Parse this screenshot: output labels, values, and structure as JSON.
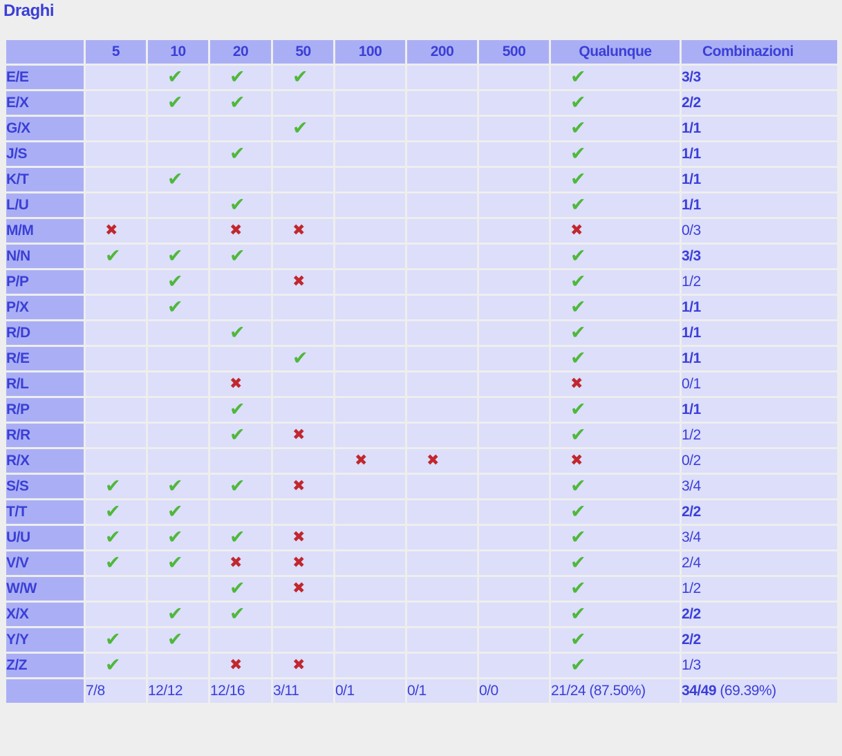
{
  "title": "Draghi",
  "columns": [
    "5",
    "10",
    "20",
    "50",
    "100",
    "200",
    "500",
    "Qualunque",
    "Combinazioni"
  ],
  "icons": {
    "ok": "✔",
    "fail": "✖"
  },
  "rows": [
    {
      "label": "E/E",
      "cells": [
        "",
        "ok",
        "ok",
        "ok",
        "",
        "",
        ""
      ],
      "any": "ok",
      "combo": "3/3",
      "full": true
    },
    {
      "label": "E/X",
      "cells": [
        "",
        "ok",
        "ok",
        "",
        "",
        "",
        ""
      ],
      "any": "ok",
      "combo": "2/2",
      "full": true
    },
    {
      "label": "G/X",
      "cells": [
        "",
        "",
        "",
        "ok",
        "",
        "",
        ""
      ],
      "any": "ok",
      "combo": "1/1",
      "full": true
    },
    {
      "label": "J/S",
      "cells": [
        "",
        "",
        "ok",
        "",
        "",
        "",
        ""
      ],
      "any": "ok",
      "combo": "1/1",
      "full": true
    },
    {
      "label": "K/T",
      "cells": [
        "",
        "ok",
        "",
        "",
        "",
        "",
        ""
      ],
      "any": "ok",
      "combo": "1/1",
      "full": true
    },
    {
      "label": "L/U",
      "cells": [
        "",
        "",
        "ok",
        "",
        "",
        "",
        ""
      ],
      "any": "ok",
      "combo": "1/1",
      "full": true
    },
    {
      "label": "M/M",
      "cells": [
        "fail",
        "",
        "fail",
        "fail",
        "",
        "",
        ""
      ],
      "any": "fail",
      "combo": "0/3",
      "full": false
    },
    {
      "label": "N/N",
      "cells": [
        "ok",
        "ok",
        "ok",
        "",
        "",
        "",
        ""
      ],
      "any": "ok",
      "combo": "3/3",
      "full": true
    },
    {
      "label": "P/P",
      "cells": [
        "",
        "ok",
        "",
        "fail",
        "",
        "",
        ""
      ],
      "any": "ok",
      "combo": "1/2",
      "full": false
    },
    {
      "label": "P/X",
      "cells": [
        "",
        "ok",
        "",
        "",
        "",
        "",
        ""
      ],
      "any": "ok",
      "combo": "1/1",
      "full": true
    },
    {
      "label": "R/D",
      "cells": [
        "",
        "",
        "ok",
        "",
        "",
        "",
        ""
      ],
      "any": "ok",
      "combo": "1/1",
      "full": true
    },
    {
      "label": "R/E",
      "cells": [
        "",
        "",
        "",
        "ok",
        "",
        "",
        ""
      ],
      "any": "ok",
      "combo": "1/1",
      "full": true
    },
    {
      "label": "R/L",
      "cells": [
        "",
        "",
        "fail",
        "",
        "",
        "",
        ""
      ],
      "any": "fail",
      "combo": "0/1",
      "full": false
    },
    {
      "label": "R/P",
      "cells": [
        "",
        "",
        "ok",
        "",
        "",
        "",
        ""
      ],
      "any": "ok",
      "combo": "1/1",
      "full": true
    },
    {
      "label": "R/R",
      "cells": [
        "",
        "",
        "ok",
        "fail",
        "",
        "",
        ""
      ],
      "any": "ok",
      "combo": "1/2",
      "full": false
    },
    {
      "label": "R/X",
      "cells": [
        "",
        "",
        "",
        "",
        "fail",
        "fail",
        ""
      ],
      "any": "fail",
      "combo": "0/2",
      "full": false
    },
    {
      "label": "S/S",
      "cells": [
        "ok",
        "ok",
        "ok",
        "fail",
        "",
        "",
        ""
      ],
      "any": "ok",
      "combo": "3/4",
      "full": false
    },
    {
      "label": "T/T",
      "cells": [
        "ok",
        "ok",
        "",
        "",
        "",
        "",
        ""
      ],
      "any": "ok",
      "combo": "2/2",
      "full": true
    },
    {
      "label": "U/U",
      "cells": [
        "ok",
        "ok",
        "ok",
        "fail",
        "",
        "",
        ""
      ],
      "any": "ok",
      "combo": "3/4",
      "full": false
    },
    {
      "label": "V/V",
      "cells": [
        "ok",
        "ok",
        "fail",
        "fail",
        "",
        "",
        ""
      ],
      "any": "ok",
      "combo": "2/4",
      "full": false
    },
    {
      "label": "W/W",
      "cells": [
        "",
        "",
        "ok",
        "fail",
        "",
        "",
        ""
      ],
      "any": "ok",
      "combo": "1/2",
      "full": false
    },
    {
      "label": "X/X",
      "cells": [
        "",
        "ok",
        "ok",
        "",
        "",
        "",
        ""
      ],
      "any": "ok",
      "combo": "2/2",
      "full": true
    },
    {
      "label": "Y/Y",
      "cells": [
        "ok",
        "ok",
        "",
        "",
        "",
        "",
        ""
      ],
      "any": "ok",
      "combo": "2/2",
      "full": true
    },
    {
      "label": "Z/Z",
      "cells": [
        "ok",
        "",
        "fail",
        "fail",
        "",
        "",
        ""
      ],
      "any": "ok",
      "combo": "1/3",
      "full": false
    }
  ],
  "totals": {
    "cells": [
      "7/8",
      "12/12",
      "12/16",
      "3/11",
      "0/1",
      "0/1",
      "0/0"
    ],
    "any": "21/24 (87.50%)",
    "combo_bold": "34/49",
    "combo_pct": " (69.39%)"
  }
}
